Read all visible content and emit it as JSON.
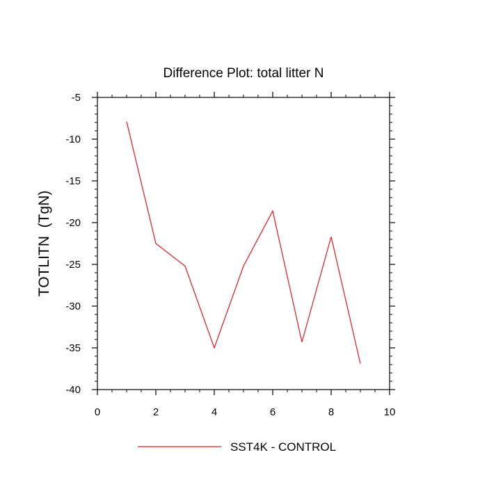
{
  "chart_data": {
    "type": "line",
    "title": "Difference Plot: total litter N",
    "xlabel": "",
    "ylabel": "TOTLITN  (TgN)",
    "xlim": [
      0,
      10
    ],
    "ylim": [
      -40,
      -5
    ],
    "x_ticks": [
      0,
      2,
      4,
      6,
      8,
      10
    ],
    "x_tick_labels": [
      "0",
      "2",
      "4",
      "6",
      "8",
      "10"
    ],
    "y_ticks": [
      -40,
      -35,
      -30,
      -25,
      -20,
      -15,
      -10,
      -5
    ],
    "y_tick_labels": [
      "-40",
      "-35",
      "-30",
      "-25",
      "-20",
      "-15",
      "-10",
      "-5"
    ],
    "grid": false,
    "legend_position": "bottom",
    "series": [
      {
        "name": "SST4K - CONTROL",
        "color": "#e8141b",
        "x": [
          1,
          2,
          3,
          4,
          5,
          6,
          7,
          8,
          9
        ],
        "values": [
          -7.9,
          -22.5,
          -25.2,
          -35.0,
          -25.2,
          -18.6,
          -34.3,
          -21.7,
          -36.9
        ]
      }
    ]
  }
}
